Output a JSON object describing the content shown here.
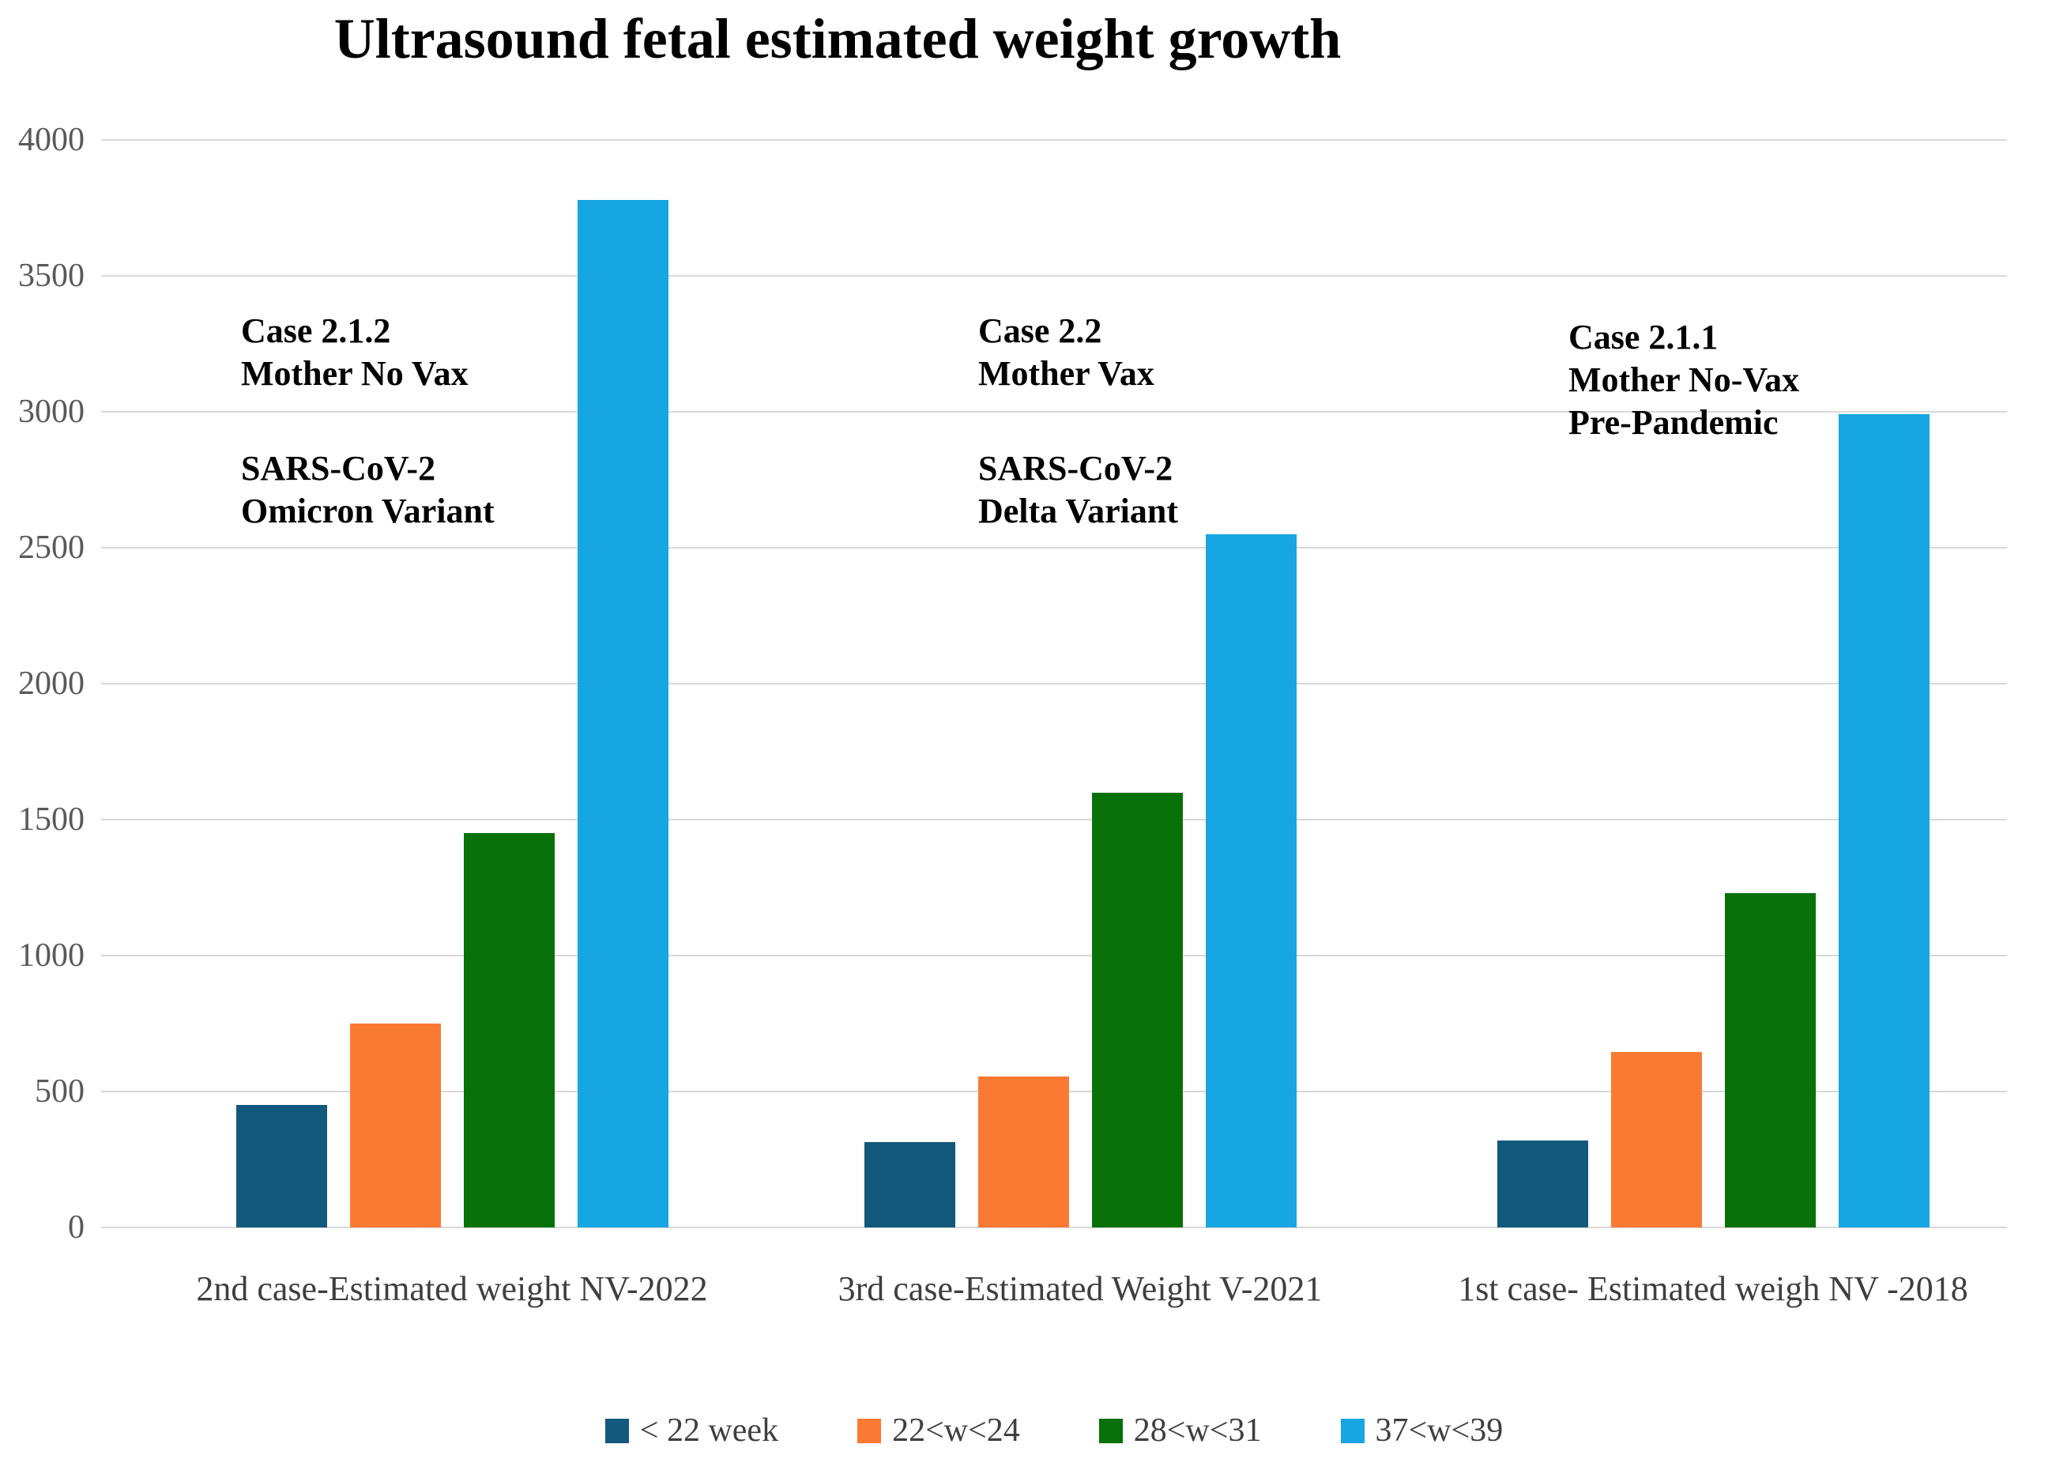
{
  "title": "Ultrasound fetal estimated weight growth",
  "y_axis": {
    "tick_labels": [
      "4000",
      "3500",
      "3000",
      "2500",
      "2000",
      "1500",
      "1000",
      "500",
      "0"
    ]
  },
  "x_axis": {
    "labels": [
      "2nd case-Estimated weight NV-2022",
      "3rd case-Estimated Weight V-2021",
      "1st case- Estimated weigh NV -2018"
    ]
  },
  "legend": {
    "items": [
      {
        "label": "< 22 week",
        "color": "#13587D"
      },
      {
        "label": "22<w<24",
        "color": "#FB7A33"
      },
      {
        "label": "28<w<31",
        "color": "#087109"
      },
      {
        "label": "37<w<39",
        "color": "#16A6E1"
      }
    ]
  },
  "annotations": [
    {
      "lines": [
        "Case 2.1.2",
        "Mother No Vax",
        "",
        "SARS-CoV-2",
        "Omicron Variant"
      ]
    },
    {
      "lines": [
        "Case 2.2",
        "Mother Vax",
        "",
        "SARS-CoV-2",
        "Delta Variant"
      ]
    },
    {
      "lines": [
        "Case 2.1.1",
        "Mother No-Vax",
        "Pre-Pandemic"
      ]
    }
  ],
  "colors": {
    "gridline": "#D9D9D9",
    "y_tick_text": "#595959",
    "x_label_text": "#3F3F3F",
    "legend_text": "#3F3F3F",
    "annotation_text": "#000000",
    "background": "#FFFFFF"
  },
  "chart_data": {
    "type": "bar",
    "title": "Ultrasound fetal estimated weight growth",
    "categories": [
      "2nd case-Estimated weight NV-2022",
      "3rd case-Estimated Weight V-2021",
      "1st case- Estimated weigh NV -2018"
    ],
    "series": [
      {
        "name": "< 22 week",
        "color": "#13587D",
        "values": [
          450,
          315,
          320
        ]
      },
      {
        "name": "22<w<24",
        "color": "#FB7A33",
        "values": [
          750,
          555,
          645
        ]
      },
      {
        "name": "28<w<31",
        "color": "#087109",
        "values": [
          1450,
          1600,
          1230
        ]
      },
      {
        "name": "37<w<39",
        "color": "#16A6E1",
        "values": [
          3780,
          2550,
          2990
        ]
      }
    ],
    "ylim": [
      0,
      4000
    ],
    "ytick_step": 500,
    "grid": "horizontal",
    "legend_position": "bottom",
    "group_annotations": [
      "Case 2.1.2 Mother No Vax / SARS-CoV-2 Omicron Variant",
      "Case 2.2 Mother Vax / SARS-CoV-2 Delta Variant",
      "Case 2.1.1 Mother No-Vax Pre-Pandemic"
    ]
  }
}
